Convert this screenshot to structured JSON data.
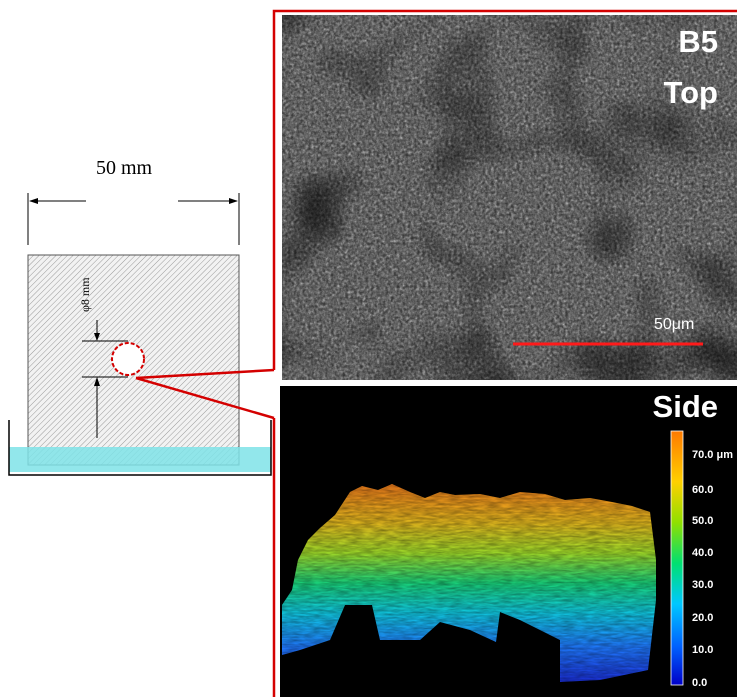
{
  "schematic": {
    "width_label": "50 mm",
    "hole_label": "φ8 mm"
  },
  "top_panel": {
    "label_line1": "B5",
    "label_line2": "Top",
    "scale_bar_label": "50μm"
  },
  "side_panel": {
    "label": "Side",
    "colorbar_ticks": [
      "70.0 μm",
      "60.0",
      "50.0",
      "40.0",
      "30.0",
      "20.0",
      "10.0",
      "0.0"
    ]
  },
  "colors": {
    "frame_red": "#d40000",
    "water": "#7fe3e8",
    "hatch": "#888888"
  }
}
